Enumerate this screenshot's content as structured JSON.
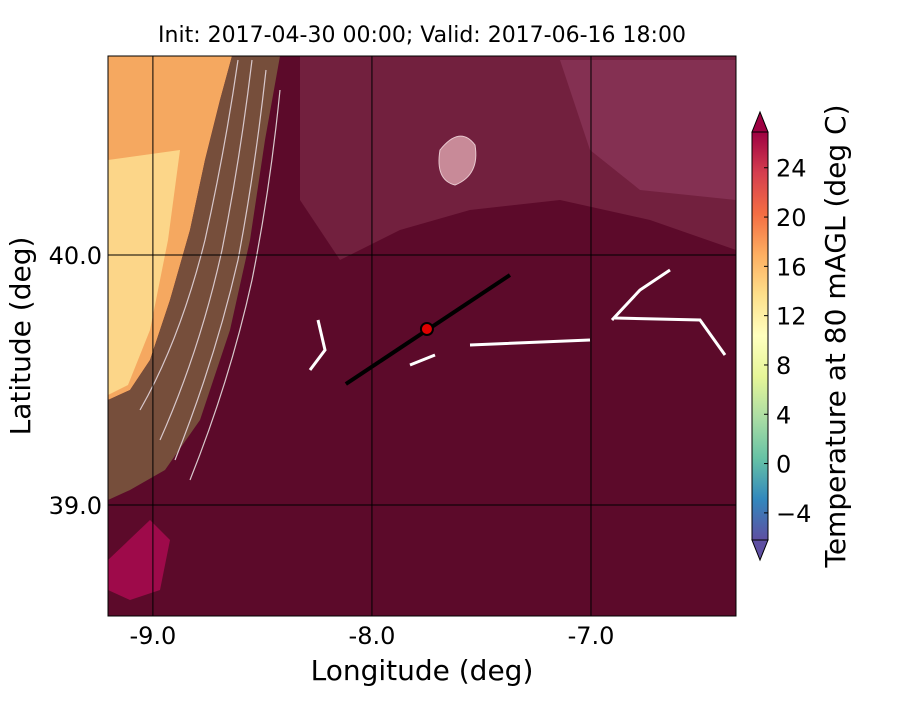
{
  "chart_data": {
    "type": "contour-map",
    "title": "Init: 2017-04-30 00:00; Valid: 2017-06-16 18:00",
    "xlabel": "Longitude (deg)",
    "ylabel": "Latitude (deg)",
    "xlim": [
      -9.205,
      -6.338
    ],
    "ylim": [
      38.556,
      40.796
    ],
    "xticks": [
      {
        "value": -9,
        "label": "-9.0"
      },
      {
        "value": -8,
        "label": "-8.0"
      },
      {
        "value": -7,
        "label": "-7.0"
      }
    ],
    "yticks": [
      {
        "value": 39,
        "label": "39.0"
      },
      {
        "value": 40,
        "label": "40.0"
      }
    ],
    "grid": true,
    "cross_section": {
      "color": "#000000",
      "lon": [
        -8.119,
        -7.37
      ],
      "lat": [
        39.484,
        39.92
      ]
    },
    "point": {
      "color": "#e00000",
      "lon": -7.749,
      "lat": 39.704
    },
    "colorbar": {
      "label": "Temperature at 80 mAGL (deg C)",
      "lim": [
        -6.2,
        26.9
      ],
      "ticks": [
        {
          "value": -4,
          "label": "−4"
        },
        0,
        4,
        8,
        12,
        16,
        20,
        24
      ],
      "colors": [
        "#5e4fa2",
        "#3288bd",
        "#66c2a5",
        "#abdda4",
        "#e6f598",
        "#ffffbf",
        "#fee08b",
        "#fdae61",
        "#f46d43",
        "#d53e4f",
        "#9e0142"
      ]
    }
  }
}
